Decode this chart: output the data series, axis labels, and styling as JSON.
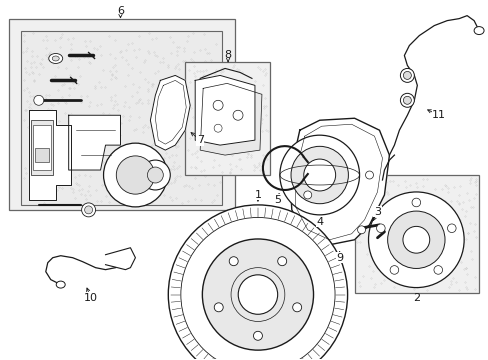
{
  "background_color": "#ffffff",
  "fig_width": 4.89,
  "fig_height": 3.6,
  "dpi": 100,
  "line_color": "#1a1a1a",
  "box_face": "#f2f2f2",
  "box_edge": "#555555",
  "label_fontsize": 8,
  "arrow_lw": 0.6
}
